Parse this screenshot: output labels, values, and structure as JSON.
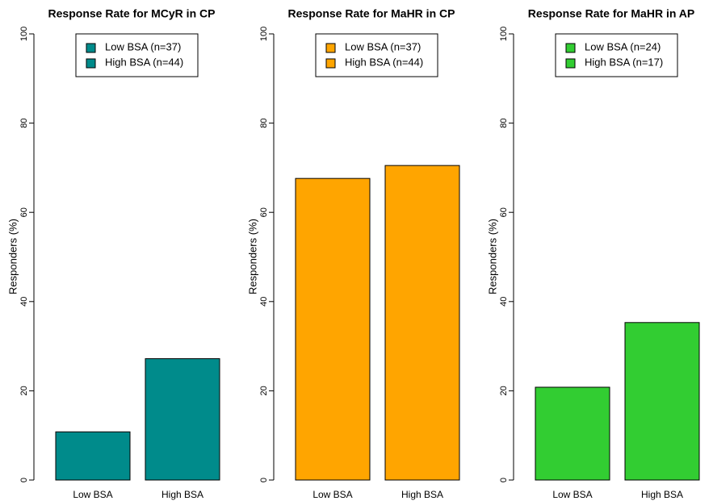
{
  "chart_data": [
    {
      "type": "bar",
      "title": "Response Rate for MCyR in CP",
      "ylabel": "Responders (%)",
      "categories": [
        "Low BSA",
        "High BSA"
      ],
      "values": [
        10.8,
        27.2
      ],
      "color": "#008b8b",
      "legend": [
        "Low BSA (n=37)",
        "High BSA (n=44)"
      ],
      "legend_position": "top",
      "ylim": [
        0,
        100
      ],
      "yticks": [
        0,
        20,
        40,
        60,
        80,
        100
      ]
    },
    {
      "type": "bar",
      "title": "Response Rate for MaHR in CP",
      "ylabel": "Responders (%)",
      "categories": [
        "Low BSA",
        "High BSA"
      ],
      "values": [
        67.6,
        70.5
      ],
      "color": "#ffa500",
      "legend": [
        "Low BSA (n=37)",
        "High BSA (n=44)"
      ],
      "legend_position": "top",
      "ylim": [
        0,
        100
      ],
      "yticks": [
        0,
        20,
        40,
        60,
        80,
        100
      ]
    },
    {
      "type": "bar",
      "title": "Response Rate for MaHR in AP",
      "ylabel": "Responders (%)",
      "categories": [
        "Low BSA",
        "High BSA"
      ],
      "values": [
        20.8,
        35.3
      ],
      "color": "#32cd32",
      "legend": [
        "Low BSA (n=24)",
        "High BSA (n=17)"
      ],
      "legend_position": "top",
      "ylim": [
        0,
        100
      ],
      "yticks": [
        0,
        20,
        40,
        60,
        80,
        100
      ]
    }
  ]
}
